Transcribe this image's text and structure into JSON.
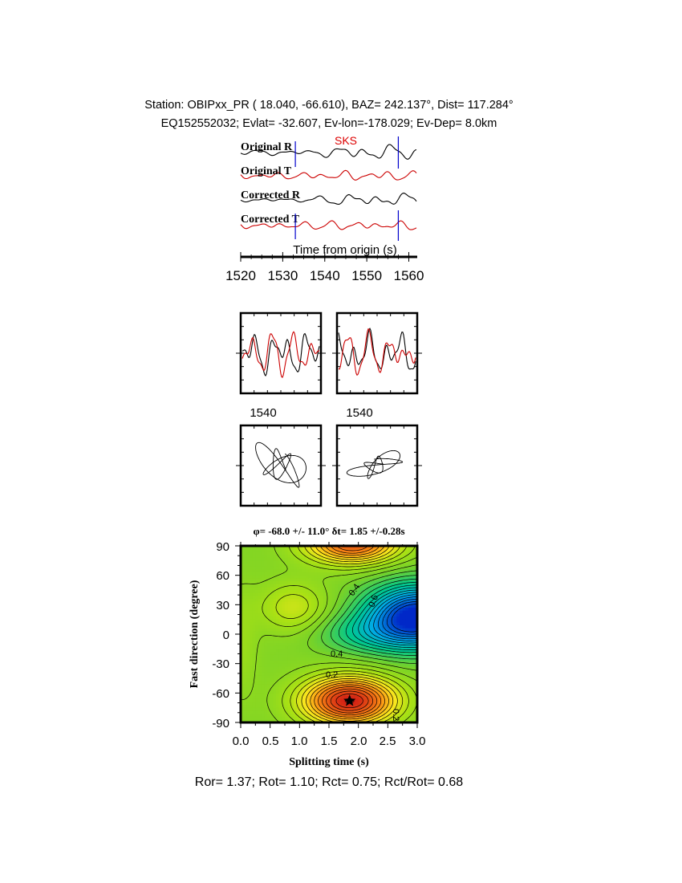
{
  "header": {
    "line1": "Station: OBIPxx_PR (  18.040,  -66.610), BAZ=  242.137°, Dist=  117.284°",
    "line2": "EQ152552032; Evlat= -32.607, Ev-lon=-178.029; Ev-Dep=  8.0km"
  },
  "colors": {
    "trace_r": "#000000",
    "trace_t": "#cc0000",
    "phase_label": "#dd0000",
    "window_marker": "#0000cc"
  },
  "traces": {
    "phase_label": "SKS",
    "labels": [
      "Original R",
      "Original T",
      "Corrected R",
      "Corrected T"
    ],
    "xlabel": "Time from origin (s)",
    "x_range": [
      1520,
      1562
    ],
    "ticks": [
      "1520",
      "1530",
      "1540",
      "1550",
      "1560"
    ],
    "window_start_s": 1533,
    "window_end_s": 1557.5
  },
  "particle_panels": {
    "wave_tick_left": "1540",
    "wave_tick_right": "1540"
  },
  "chart_data": {
    "type": "heatmap",
    "title": "φ= -68.0 +/- 11.0° δt= 1.85 +/-0.28s",
    "xlabel": "Splitting time (s)",
    "ylabel": "Fast direction (degree)",
    "xlim": [
      0,
      3.0
    ],
    "ylim": [
      -90,
      90
    ],
    "x_ticks": [
      "0.0",
      "0.5",
      "1.0",
      "1.5",
      "2.0",
      "2.5",
      "3.0"
    ],
    "y_ticks": [
      "90",
      "60",
      "30",
      "0",
      "-30",
      "-60",
      "-90"
    ],
    "contour_labels": [
      "0.4",
      "0.6",
      "0.4",
      "0.2",
      "0.2"
    ],
    "best_fit": {
      "dt": 1.85,
      "phi": -68.0
    }
  },
  "footer": "Ror= 1.37; Rot= 1.10; Rct= 0.75; Rct/Rot= 0.68"
}
